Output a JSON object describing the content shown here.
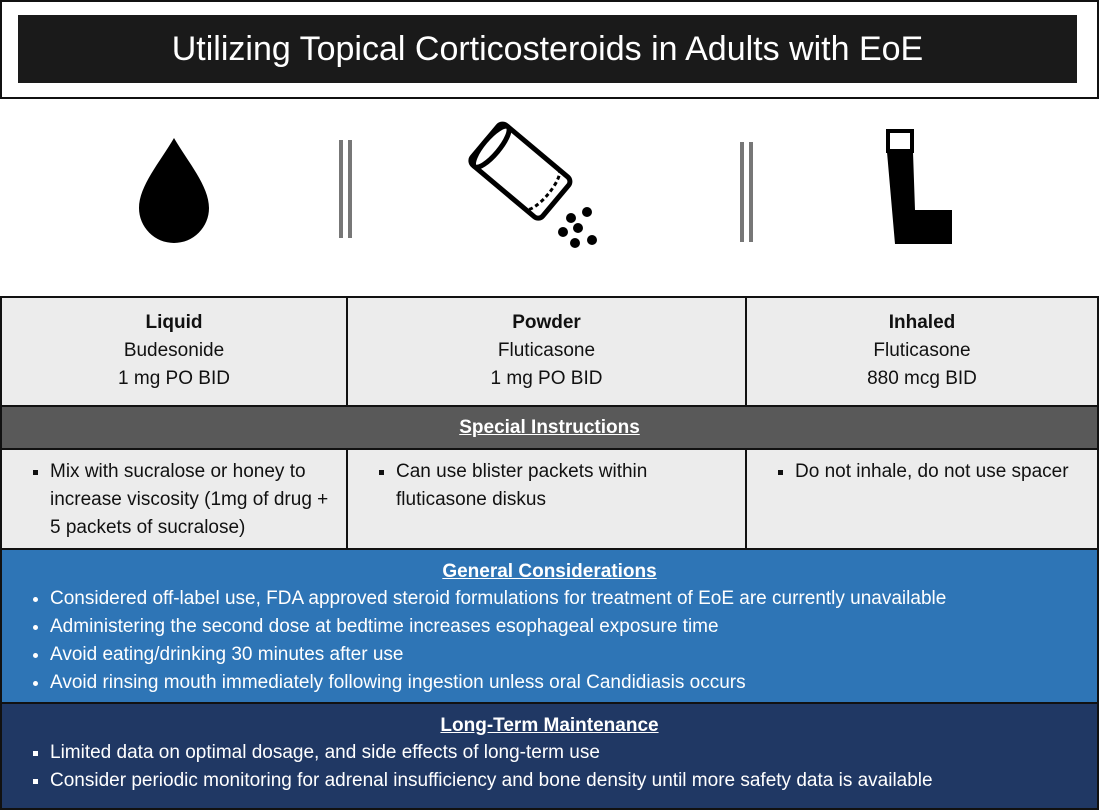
{
  "header": {
    "title": "Utilizing Topical Corticosteroids in Adults with EoE"
  },
  "columns": [
    {
      "form": "Liquid",
      "drug": "Budesonide",
      "dose": "1 mg PO BID",
      "instruction": "Mix with sucralose or honey to increase viscosity (1mg of drug + 5 packets of sucralose)"
    },
    {
      "form": "Powder",
      "drug": "Fluticasone",
      "dose": "1 mg PO BID",
      "instruction": "Can use blister packets within fluticasone diskus"
    },
    {
      "form": "Inhaled",
      "drug": "Fluticasone",
      "dose": "880 mcg BID",
      "instruction": "Do not inhale, do not use spacer"
    }
  ],
  "special_instructions": {
    "title": "Special Instructions"
  },
  "general": {
    "title": "General Considerations",
    "items": [
      "Considered off-label use,  FDA approved steroid formulations for treatment of EoE are currently unavailable",
      "Administering the second dose at bedtime increases esophageal exposure time",
      "Avoid eating/drinking 30 minutes after use",
      "Avoid rinsing mouth immediately following ingestion unless oral Candidiasis occurs"
    ]
  },
  "long_term": {
    "title": "Long-Term Maintenance",
    "items": [
      "Limited data on optimal dosage, and side effects of long-term use",
      "Consider periodic monitoring for adrenal insufficiency and bone density until more safety data is available"
    ]
  }
}
